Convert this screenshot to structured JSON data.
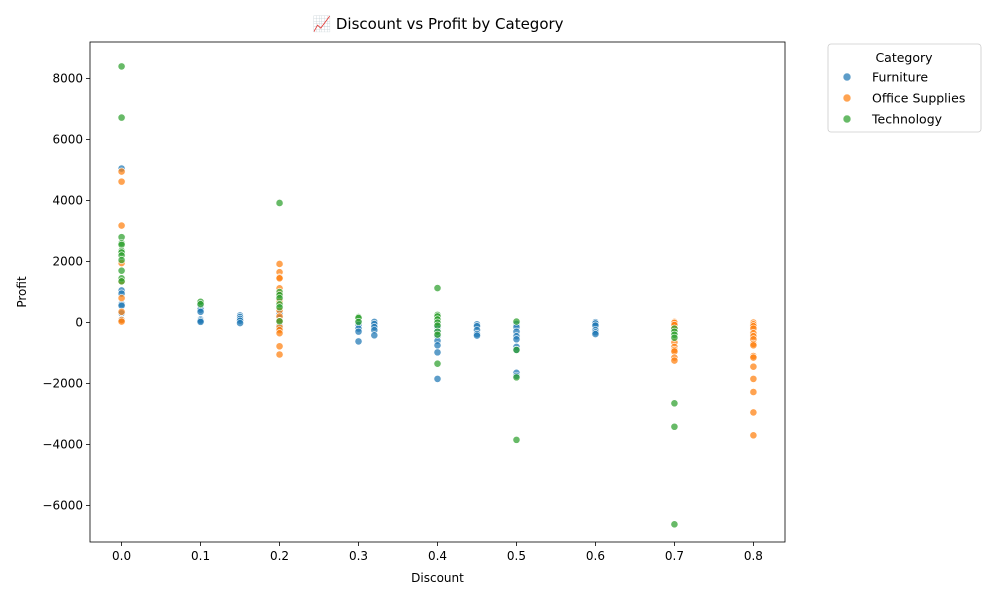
{
  "chart_data": {
    "type": "scatter",
    "title": "📈 Discount vs Profit by Category",
    "xlabel": "Discount",
    "ylabel": "Profit",
    "xlim": [
      -0.04,
      0.84
    ],
    "ylim": [
      -7200,
      9200
    ],
    "xticks": [
      0.0,
      0.1,
      0.2,
      0.3,
      0.4,
      0.5,
      0.6,
      0.7,
      0.8
    ],
    "xtick_labels": [
      "0.0",
      "0.1",
      "0.2",
      "0.3",
      "0.4",
      "0.5",
      "0.6",
      "0.7",
      "0.8"
    ],
    "yticks": [
      -6000,
      -4000,
      -2000,
      0,
      2000,
      4000,
      6000,
      8000
    ],
    "ytick_labels": [
      "−6000",
      "−4000",
      "−2000",
      "0",
      "2000",
      "4000",
      "6000",
      "8000"
    ],
    "grid": false,
    "legend": {
      "title": "Category",
      "placement": "upper-right-outside"
    },
    "series": [
      {
        "name": "Furniture",
        "color": "#1f77b4",
        "points": [
          [
            0.0,
            5050
          ],
          [
            0.0,
            1050
          ],
          [
            0.0,
            950
          ],
          [
            0.0,
            600
          ],
          [
            0.0,
            550
          ],
          [
            0.0,
            300
          ],
          [
            0.0,
            100
          ],
          [
            0.1,
            620
          ],
          [
            0.1,
            550
          ],
          [
            0.1,
            480
          ],
          [
            0.1,
            420
          ],
          [
            0.1,
            350
          ],
          [
            0.1,
            100
          ],
          [
            0.1,
            60
          ],
          [
            0.1,
            20
          ],
          [
            0.15,
            230
          ],
          [
            0.15,
            180
          ],
          [
            0.15,
            120
          ],
          [
            0.15,
            60
          ],
          [
            0.15,
            -20
          ],
          [
            0.2,
            300
          ],
          [
            0.2,
            150
          ],
          [
            0.2,
            50
          ],
          [
            0.2,
            10
          ],
          [
            0.2,
            -100
          ],
          [
            0.2,
            -200
          ],
          [
            0.3,
            50
          ],
          [
            0.3,
            -80
          ],
          [
            0.3,
            -200
          ],
          [
            0.3,
            -300
          ],
          [
            0.3,
            -620
          ],
          [
            0.32,
            20
          ],
          [
            0.32,
            -50
          ],
          [
            0.32,
            -150
          ],
          [
            0.32,
            -250
          ],
          [
            0.32,
            -420
          ],
          [
            0.4,
            -50
          ],
          [
            0.4,
            -150
          ],
          [
            0.4,
            -300
          ],
          [
            0.4,
            -450
          ],
          [
            0.4,
            -600
          ],
          [
            0.4,
            -750
          ],
          [
            0.4,
            -980
          ],
          [
            0.4,
            -1850
          ],
          [
            0.45,
            -60
          ],
          [
            0.45,
            -120
          ],
          [
            0.45,
            -250
          ],
          [
            0.45,
            -380
          ],
          [
            0.45,
            -430
          ],
          [
            0.5,
            -50
          ],
          [
            0.5,
            -150
          ],
          [
            0.5,
            -300
          ],
          [
            0.5,
            -450
          ],
          [
            0.5,
            -550
          ],
          [
            0.5,
            -800
          ],
          [
            0.5,
            -900
          ],
          [
            0.5,
            -1650
          ],
          [
            0.5,
            -1750
          ],
          [
            0.6,
            10
          ],
          [
            0.6,
            -30
          ],
          [
            0.6,
            -100
          ],
          [
            0.6,
            -250
          ],
          [
            0.6,
            -320
          ],
          [
            0.6,
            -380
          ]
        ]
      },
      {
        "name": "Office Supplies",
        "color": "#ff7f0e",
        "points": [
          [
            0.0,
            4950
          ],
          [
            0.0,
            4620
          ],
          [
            0.0,
            3180
          ],
          [
            0.0,
            1950
          ],
          [
            0.0,
            1350
          ],
          [
            0.0,
            800
          ],
          [
            0.0,
            350
          ],
          [
            0.0,
            80
          ],
          [
            0.0,
            30
          ],
          [
            0.2,
            1920
          ],
          [
            0.2,
            1650
          ],
          [
            0.2,
            1480
          ],
          [
            0.2,
            1450
          ],
          [
            0.2,
            1120
          ],
          [
            0.2,
            950
          ],
          [
            0.2,
            700
          ],
          [
            0.2,
            400
          ],
          [
            0.2,
            200
          ],
          [
            0.2,
            50
          ],
          [
            0.2,
            -150
          ],
          [
            0.2,
            -250
          ],
          [
            0.2,
            -350
          ],
          [
            0.2,
            -780
          ],
          [
            0.2,
            -1050
          ],
          [
            0.7,
            20
          ],
          [
            0.7,
            -10
          ],
          [
            0.7,
            -80
          ],
          [
            0.7,
            -200
          ],
          [
            0.7,
            -650
          ],
          [
            0.7,
            -800
          ],
          [
            0.7,
            -900
          ],
          [
            0.7,
            -950
          ],
          [
            0.7,
            -1150
          ],
          [
            0.7,
            -1250
          ],
          [
            0.8,
            0
          ],
          [
            0.8,
            -60
          ],
          [
            0.8,
            -120
          ],
          [
            0.8,
            -200
          ],
          [
            0.8,
            -350
          ],
          [
            0.8,
            -450
          ],
          [
            0.8,
            -550
          ],
          [
            0.8,
            -700
          ],
          [
            0.8,
            -750
          ],
          [
            0.8,
            -1100
          ],
          [
            0.8,
            -1150
          ],
          [
            0.8,
            -1450
          ],
          [
            0.8,
            -1850
          ],
          [
            0.8,
            -2280
          ],
          [
            0.8,
            -2950
          ],
          [
            0.8,
            -3700
          ]
        ]
      },
      {
        "name": "Technology",
        "color": "#2ca02c",
        "points": [
          [
            0.0,
            8400
          ],
          [
            0.0,
            6720
          ],
          [
            0.0,
            2800
          ],
          [
            0.0,
            2600
          ],
          [
            0.0,
            2550
          ],
          [
            0.0,
            2350
          ],
          [
            0.0,
            2300
          ],
          [
            0.0,
            2200
          ],
          [
            0.0,
            2050
          ],
          [
            0.0,
            1700
          ],
          [
            0.0,
            1450
          ],
          [
            0.0,
            1350
          ],
          [
            0.1,
            680
          ],
          [
            0.1,
            600
          ],
          [
            0.2,
            3920
          ],
          [
            0.2,
            1000
          ],
          [
            0.2,
            900
          ],
          [
            0.2,
            800
          ],
          [
            0.2,
            600
          ],
          [
            0.2,
            500
          ],
          [
            0.2,
            40
          ],
          [
            0.3,
            180
          ],
          [
            0.3,
            150
          ],
          [
            0.3,
            20
          ],
          [
            0.4,
            1130
          ],
          [
            0.4,
            250
          ],
          [
            0.4,
            200
          ],
          [
            0.4,
            100
          ],
          [
            0.4,
            0
          ],
          [
            0.4,
            -100
          ],
          [
            0.4,
            -300
          ],
          [
            0.4,
            -400
          ],
          [
            0.4,
            -1350
          ],
          [
            0.5,
            30
          ],
          [
            0.5,
            -900
          ],
          [
            0.5,
            -1800
          ],
          [
            0.5,
            -3850
          ],
          [
            0.7,
            -200
          ],
          [
            0.7,
            -300
          ],
          [
            0.7,
            -400
          ],
          [
            0.7,
            -500
          ],
          [
            0.7,
            -2650
          ],
          [
            0.7,
            -3420
          ],
          [
            0.7,
            -6620
          ]
        ]
      }
    ]
  }
}
